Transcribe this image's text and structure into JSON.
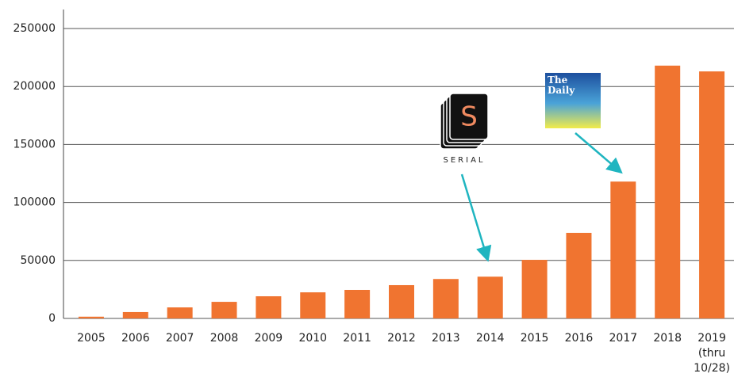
{
  "chart_data": {
    "type": "bar",
    "categories": [
      "2005",
      "2006",
      "2007",
      "2008",
      "2009",
      "2010",
      "2011",
      "2012",
      "2013",
      "2014",
      "2015",
      "2016",
      "2017",
      "2018",
      "2019 (thru 10/28)"
    ],
    "values": [
      1500,
      5500,
      9500,
      14300,
      19100,
      22500,
      24600,
      28700,
      34000,
      36000,
      50500,
      73800,
      118000,
      218000,
      213000
    ],
    "color": "#f07430",
    "ylim": [
      0,
      250000
    ],
    "yticks": [
      0,
      50000,
      100000,
      150000,
      200000,
      250000
    ],
    "grid": true,
    "annotations": {
      "serial_logo": "S",
      "serial_name": "SERIAL",
      "daily_logo": "The Daily"
    }
  }
}
